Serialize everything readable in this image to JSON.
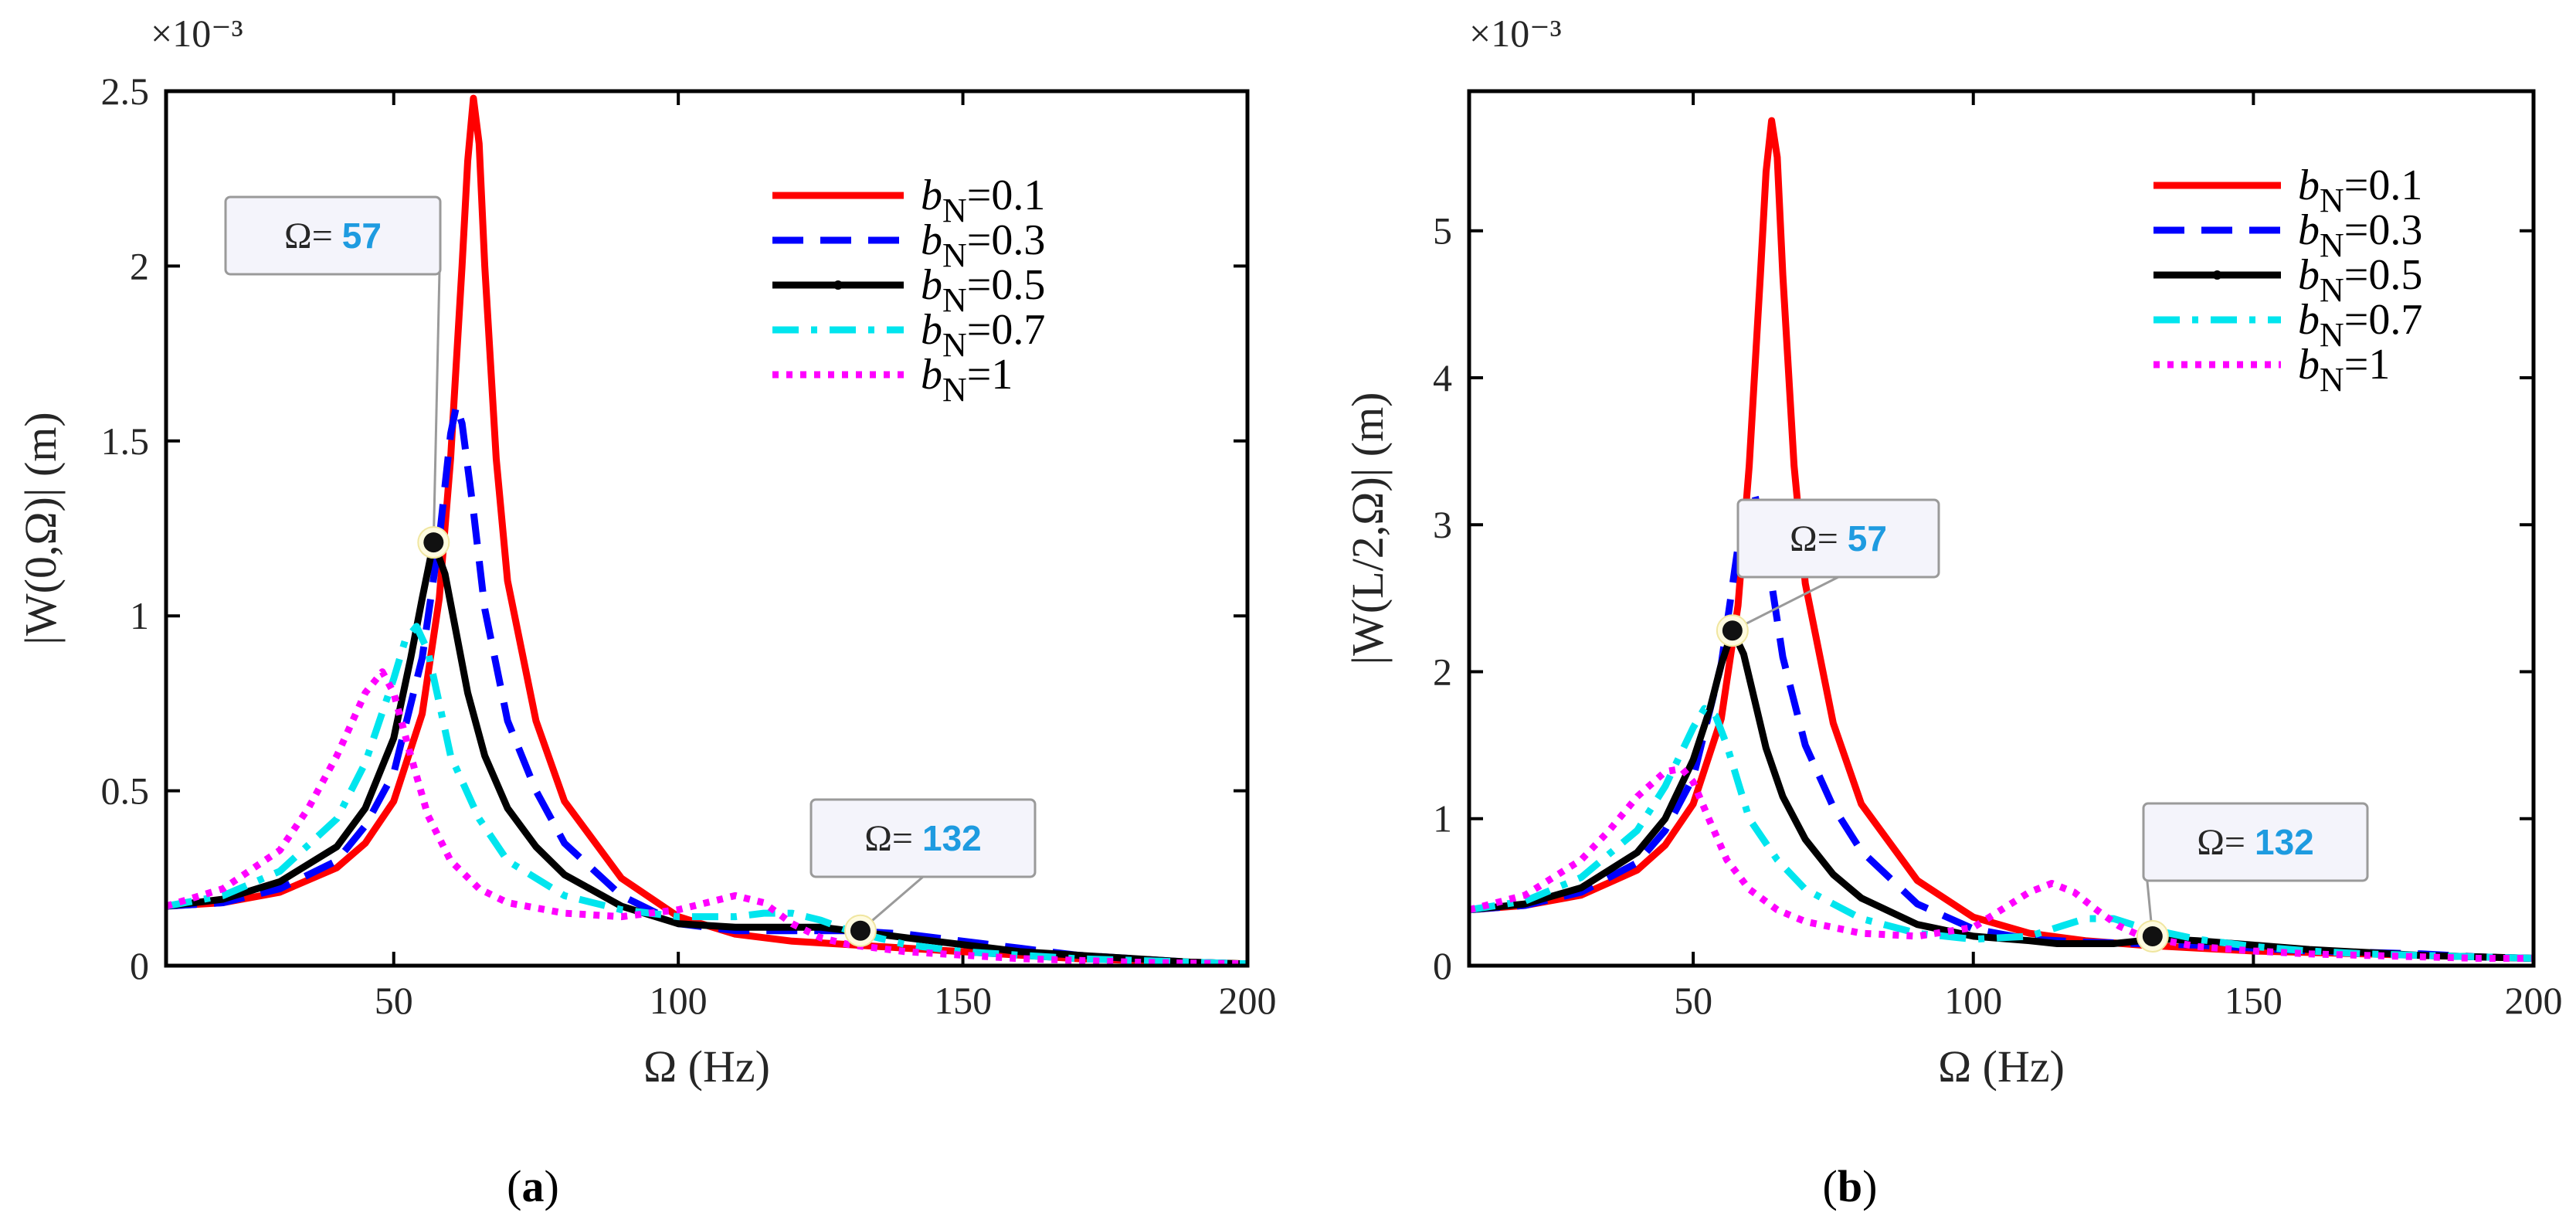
{
  "chart_data": [
    {
      "id": "a",
      "type": "line",
      "caption": "a",
      "xlabel": "Ω (Hz)",
      "ylabel": "|W(0,Ω)| (m)",
      "y_exponent": "×10⁻³",
      "xlim": [
        10,
        200
      ],
      "ylim": [
        0,
        2.5
      ],
      "xticks": [
        "50",
        "100",
        "150",
        "200"
      ],
      "xtick_values": [
        50,
        100,
        150,
        200
      ],
      "yticks": [
        "0",
        "0.5",
        "1",
        "1.5",
        "2",
        "2.5"
      ],
      "ytick_values": [
        0,
        0.5,
        1,
        1.5,
        2,
        2.5
      ],
      "series": [
        {
          "name": "bN=0.1",
          "color": "#ff0000",
          "style": "solid",
          "x": [
            10,
            20,
            30,
            40,
            45,
            50,
            55,
            58,
            60,
            62,
            63,
            64,
            65,
            66,
            68,
            70,
            75,
            80,
            90,
            100,
            110,
            120,
            130,
            140,
            150,
            160,
            170,
            180,
            190,
            200
          ],
          "y": [
            0.17,
            0.18,
            0.21,
            0.28,
            0.35,
            0.47,
            0.72,
            1.05,
            1.45,
            2.0,
            2.3,
            2.48,
            2.35,
            2.0,
            1.45,
            1.1,
            0.7,
            0.47,
            0.25,
            0.14,
            0.09,
            0.07,
            0.06,
            0.05,
            0.04,
            0.03,
            0.02,
            0.015,
            0.01,
            0.005
          ]
        },
        {
          "name": "bN=0.3",
          "color": "#0000ff",
          "style": "dash",
          "x": [
            10,
            20,
            30,
            40,
            45,
            50,
            55,
            58,
            60,
            61,
            62,
            64,
            66,
            70,
            75,
            80,
            90,
            100,
            110,
            120,
            130,
            140,
            150,
            160,
            170,
            180,
            190,
            200
          ],
          "y": [
            0.17,
            0.18,
            0.22,
            0.3,
            0.4,
            0.55,
            0.88,
            1.22,
            1.52,
            1.6,
            1.55,
            1.3,
            1.02,
            0.7,
            0.5,
            0.35,
            0.2,
            0.12,
            0.1,
            0.1,
            0.1,
            0.09,
            0.07,
            0.05,
            0.03,
            0.02,
            0.01,
            0.005
          ]
        },
        {
          "name": "bN=0.5",
          "color": "#000000",
          "style": "solid-dot",
          "x": [
            10,
            20,
            30,
            40,
            45,
            50,
            53,
            55,
            57,
            59,
            61,
            63,
            66,
            70,
            75,
            80,
            90,
            100,
            110,
            120,
            125,
            130,
            135,
            140,
            150,
            160,
            170,
            180,
            190,
            200
          ],
          "y": [
            0.17,
            0.19,
            0.24,
            0.34,
            0.45,
            0.65,
            0.88,
            1.05,
            1.21,
            1.12,
            0.95,
            0.78,
            0.6,
            0.45,
            0.34,
            0.26,
            0.17,
            0.12,
            0.11,
            0.11,
            0.11,
            0.1,
            0.09,
            0.08,
            0.06,
            0.04,
            0.03,
            0.02,
            0.01,
            0.005
          ]
        },
        {
          "name": "bN=0.7",
          "color": "#00e5ee",
          "style": "dashdot",
          "x": [
            10,
            20,
            30,
            40,
            45,
            50,
            52,
            54,
            56,
            58,
            60,
            65,
            70,
            80,
            90,
            100,
            110,
            115,
            120,
            125,
            130,
            140,
            150,
            160,
            170,
            180,
            190,
            200
          ],
          "y": [
            0.17,
            0.2,
            0.27,
            0.42,
            0.58,
            0.82,
            0.93,
            0.97,
            0.9,
            0.75,
            0.6,
            0.42,
            0.3,
            0.2,
            0.16,
            0.14,
            0.14,
            0.15,
            0.15,
            0.13,
            0.1,
            0.06,
            0.04,
            0.03,
            0.02,
            0.015,
            0.01,
            0.005
          ]
        },
        {
          "name": "bN=1",
          "color": "#ff00ff",
          "style": "dot",
          "x": [
            10,
            20,
            30,
            35,
            40,
            45,
            48,
            50,
            53,
            56,
            60,
            65,
            70,
            80,
            90,
            100,
            105,
            110,
            115,
            120,
            125,
            130,
            140,
            150,
            160,
            170,
            180,
            190,
            200
          ],
          "y": [
            0.17,
            0.22,
            0.33,
            0.45,
            0.6,
            0.78,
            0.84,
            0.78,
            0.6,
            0.43,
            0.3,
            0.22,
            0.18,
            0.15,
            0.14,
            0.16,
            0.18,
            0.2,
            0.18,
            0.12,
            0.08,
            0.06,
            0.04,
            0.03,
            0.02,
            0.015,
            0.01,
            0.007,
            0.005
          ]
        }
      ],
      "markers": [
        {
          "x": 57,
          "y": 1.21,
          "label": "Ω=",
          "value": "57"
        },
        {
          "x": 132,
          "y": 0.1,
          "label": "Ω=",
          "value": "132"
        }
      ]
    },
    {
      "id": "b",
      "type": "line",
      "caption": "b",
      "xlabel": "Ω (Hz)",
      "ylabel": "|W(L/2,Ω)| (m)",
      "y_exponent": "×10⁻³",
      "xlim": [
        10,
        200
      ],
      "ylim": [
        0,
        5.95
      ],
      "xticks": [
        "50",
        "100",
        "150",
        "200"
      ],
      "xtick_values": [
        50,
        100,
        150,
        200
      ],
      "yticks": [
        "0",
        "1",
        "2",
        "3",
        "4",
        "5"
      ],
      "ytick_values": [
        0,
        1,
        2,
        3,
        4,
        5
      ],
      "series": [
        {
          "name": "bN=0.1",
          "color": "#ff0000",
          "style": "solid",
          "x": [
            10,
            20,
            30,
            40,
            45,
            50,
            55,
            58,
            60,
            62,
            63,
            64,
            65,
            66,
            68,
            70,
            75,
            80,
            90,
            100,
            110,
            120,
            130,
            140,
            150,
            160,
            170,
            180,
            190,
            200
          ],
          "y": [
            0.38,
            0.41,
            0.48,
            0.65,
            0.82,
            1.1,
            1.68,
            2.45,
            3.4,
            4.7,
            5.4,
            5.75,
            5.5,
            4.7,
            3.4,
            2.6,
            1.65,
            1.1,
            0.58,
            0.33,
            0.22,
            0.17,
            0.14,
            0.12,
            0.1,
            0.09,
            0.08,
            0.07,
            0.06,
            0.05
          ]
        },
        {
          "name": "bN=0.3",
          "color": "#0000ff",
          "style": "dash",
          "x": [
            10,
            20,
            30,
            40,
            45,
            50,
            55,
            58,
            60,
            61,
            62,
            64,
            66,
            70,
            75,
            80,
            90,
            100,
            110,
            120,
            130,
            140,
            150,
            160,
            170,
            180,
            190,
            200
          ],
          "y": [
            0.38,
            0.41,
            0.5,
            0.7,
            0.92,
            1.28,
            2.05,
            2.85,
            3.2,
            3.2,
            3.05,
            2.6,
            2.1,
            1.5,
            1.08,
            0.78,
            0.42,
            0.25,
            0.18,
            0.16,
            0.15,
            0.14,
            0.12,
            0.1,
            0.09,
            0.08,
            0.06,
            0.05
          ]
        },
        {
          "name": "bN=0.5",
          "color": "#000000",
          "style": "solid-dot",
          "x": [
            10,
            20,
            30,
            40,
            45,
            50,
            53,
            55,
            57,
            59,
            61,
            63,
            66,
            70,
            75,
            80,
            90,
            100,
            110,
            115,
            120,
            125,
            130,
            135,
            140,
            150,
            160,
            170,
            180,
            190,
            200
          ],
          "y": [
            0.38,
            0.42,
            0.53,
            0.77,
            1.0,
            1.4,
            1.75,
            2.05,
            2.28,
            2.12,
            1.8,
            1.48,
            1.15,
            0.86,
            0.62,
            0.46,
            0.28,
            0.2,
            0.17,
            0.15,
            0.15,
            0.15,
            0.17,
            0.18,
            0.17,
            0.14,
            0.11,
            0.09,
            0.07,
            0.06,
            0.05
          ]
        },
        {
          "name": "bN=0.7",
          "color": "#00e5ee",
          "style": "dashdot",
          "x": [
            10,
            20,
            30,
            40,
            45,
            50,
            52,
            54,
            56,
            58,
            60,
            65,
            70,
            80,
            90,
            100,
            110,
            115,
            120,
            125,
            130,
            140,
            150,
            160,
            170,
            180,
            190,
            200
          ],
          "y": [
            0.38,
            0.44,
            0.6,
            0.92,
            1.22,
            1.62,
            1.75,
            1.7,
            1.5,
            1.25,
            1.0,
            0.72,
            0.52,
            0.32,
            0.22,
            0.18,
            0.2,
            0.26,
            0.32,
            0.32,
            0.26,
            0.18,
            0.13,
            0.1,
            0.08,
            0.07,
            0.06,
            0.05
          ]
        },
        {
          "name": "bN=1",
          "color": "#ff00ff",
          "style": "dot",
          "x": [
            10,
            20,
            30,
            35,
            40,
            45,
            48,
            50,
            53,
            56,
            60,
            65,
            70,
            80,
            90,
            100,
            105,
            110,
            114,
            118,
            122,
            126,
            130,
            140,
            150,
            160,
            170,
            180,
            190,
            200
          ],
          "y": [
            0.38,
            0.48,
            0.72,
            0.92,
            1.15,
            1.32,
            1.34,
            1.25,
            0.98,
            0.72,
            0.52,
            0.38,
            0.3,
            0.22,
            0.2,
            0.26,
            0.38,
            0.5,
            0.56,
            0.5,
            0.38,
            0.27,
            0.2,
            0.13,
            0.1,
            0.08,
            0.07,
            0.06,
            0.05,
            0.05
          ]
        }
      ],
      "markers": [
        {
          "x": 57,
          "y": 2.28,
          "label": "Ω=",
          "value": "57"
        },
        {
          "x": 132,
          "y": 0.2,
          "label": "Ω=",
          "value": "132"
        }
      ]
    }
  ],
  "legend": {
    "prefix": "b",
    "subscript": "N",
    "items": [
      "=0.1",
      "=0.3",
      "=0.5",
      "=0.7",
      "=1"
    ]
  }
}
